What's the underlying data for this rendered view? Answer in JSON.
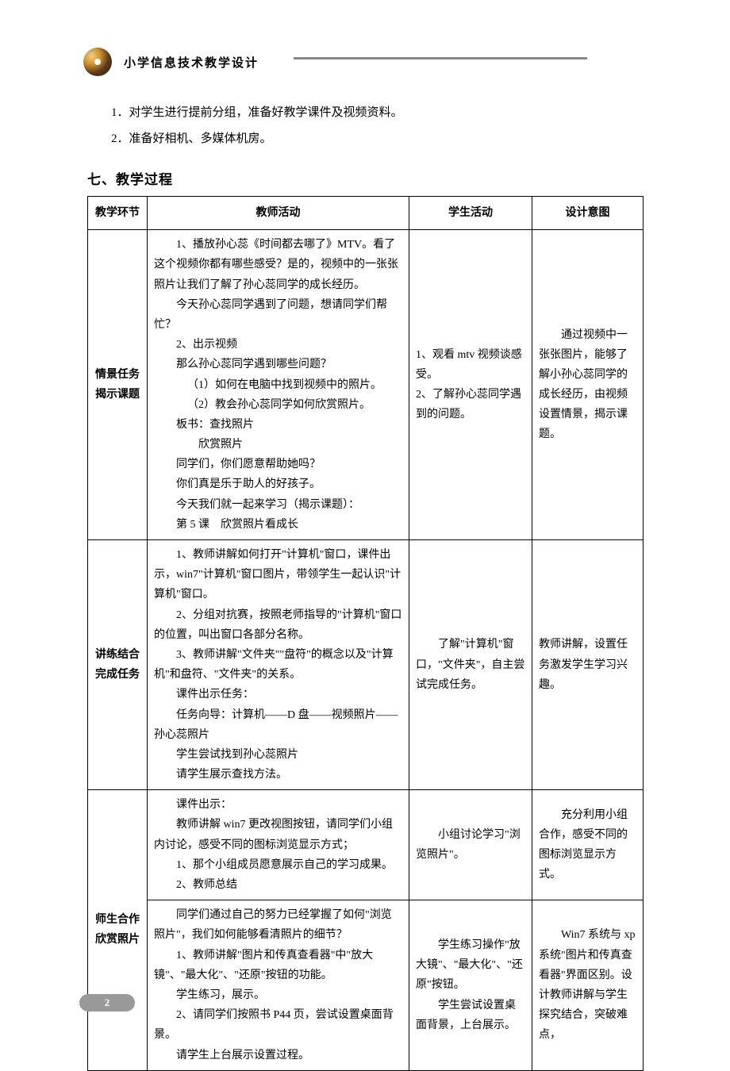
{
  "header": {
    "title": "小学信息技术教学设计"
  },
  "prep": {
    "item1": "1．对学生进行提前分组，准备好教学课件及视频资料。",
    "item2": "2．准备好相机、多媒体机房。"
  },
  "section_heading": "七、教学过程",
  "table": {
    "headers": {
      "stage": "教学环节",
      "teacher": "教师活动",
      "student": "学生活动",
      "design": "设计意图"
    },
    "row1": {
      "stage_line1": "情景任务",
      "stage_line2": "揭示课题",
      "teacher": {
        "p1": "1、播放孙心蕊《时间都去哪了》MTV。看了这个视频你都有哪些感受？是的，视频中的一张张照片让我们了解了孙心蕊同学的成长经历。",
        "p2": "今天孙心蕊同学遇到了问题，想请同学们帮忙？",
        "p3": "2、出示视频",
        "p4": "那么孙心蕊同学遇到哪些问题？",
        "p5": "（1）如何在电脑中找到视频中的照片。",
        "p6": "（2）教会孙心蕊同学如何欣赏照片。",
        "p7": "板书：查找照片",
        "p8": "欣赏照片",
        "p9": "同学们，你们愿意帮助她吗？",
        "p10": "你们真是乐于助人的好孩子。",
        "p11": "今天我们就一起来学习（揭示课题）：",
        "p12": "第 5 课　欣赏照片看成长"
      },
      "student": {
        "p1": "1、观看 mtv 视频谈感受。",
        "p2": "2、了解孙心蕊同学遇到的问题。"
      },
      "design": "通过视频中一张张图片，能够了解小孙心蕊同学的成长经历，由视频设置情景，揭示课题。"
    },
    "row2": {
      "stage_line1": "讲练结合",
      "stage_line2": "完成任务",
      "teacher": {
        "p1": "1、教师讲解如何打开\"计算机\"窗口，课件出示，win7\"计算机\"窗口图片，带领学生一起认识\"计算机\"窗口。",
        "p2": "2、分组对抗赛，按照老师指导的\"计算机\"窗口的位置，叫出窗口各部分名称。",
        "p3": "3、教师讲解\"文件夹\"\"盘符\"的概念以及\"计算机\"和盘符、\"文件夹\"的关系。",
        "p4": "课件出示任务：",
        "p5": "任务向导：计算机——D 盘——视频照片——孙心蕊照片",
        "p6": "学生尝试找到孙心蕊照片",
        "p7": "请学生展示查找方法。"
      },
      "student": "了解\"计算机\"窗口，\"文件夹\"，自主尝试完成任务。",
      "design": "教师讲解，设置任务激发学生学习兴趣。"
    },
    "row3a": {
      "teacher": {
        "p1": "课件出示：",
        "p2": "教师讲解 win7 更改视图按钮，请同学们小组内讨论，感受不同的图标浏览显示方式；",
        "p3": "1、那个小组成员愿意展示自己的学习成果。",
        "p4": "2、教师总结"
      },
      "student": "小组讨论学习\"浏览照片\"。",
      "design": "充分利用小组合作，感受不同的图标浏览显示方式。"
    },
    "row3": {
      "stage_line1": "师生合作",
      "stage_line2": "欣赏照片"
    },
    "row3b": {
      "teacher": {
        "p1": "同学们通过自己的努力已经掌握了如何\"浏览照片\"，我们如何能够看清照片的细节？",
        "p2": "1、教师讲解\"图片和传真查看器\"中\"放大镜\"、\"最大化\"、\"还原\"按钮的功能。",
        "p3": "学生练习，展示。",
        "p4": "2、请同学们按照书 P44 页，尝试设置桌面背景。",
        "p5": "请学生上台展示设置过程。"
      },
      "student": {
        "p1": "学生练习操作\"放大镜\"、\"最大化\"、\"还原\"按钮。",
        "p2": "学生尝试设置桌面背景，上台展示。"
      },
      "design": "Win7 系统与 xp 系统\"图片和传真查看器\"界面区别。设计教师讲解与学生探究结合，突破难点，"
    }
  },
  "page_number": "2"
}
